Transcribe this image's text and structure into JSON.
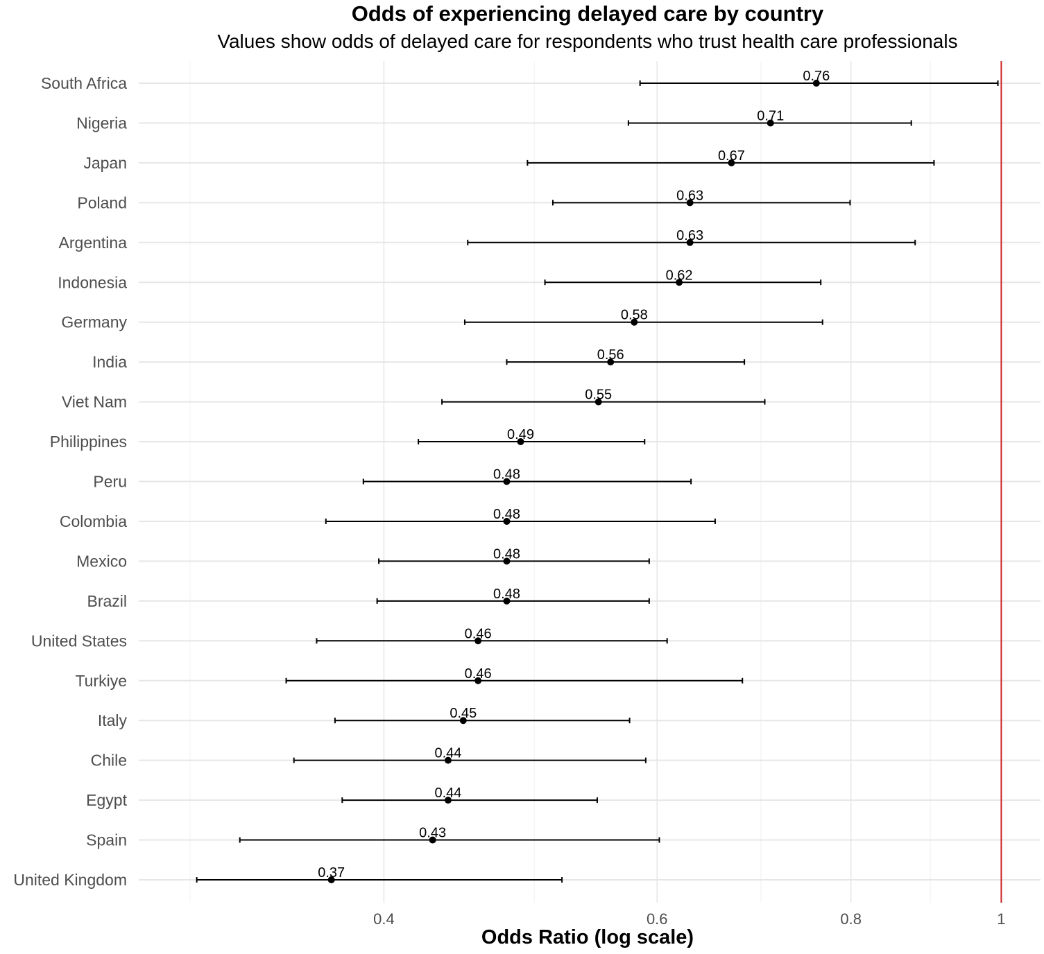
{
  "chart_data": {
    "type": "forest",
    "title": "Odds of experiencing delayed care by country",
    "subtitle": "Values show odds of delayed care for respondents who trust health care professionals",
    "xlabel": "Odds Ratio (log scale)",
    "x_scale": "log",
    "xlim": [
      0.278,
      1.06
    ],
    "x_ticks": [
      {
        "value": 0.4,
        "label": "0.4"
      },
      {
        "value": 0.6,
        "label": "0.6"
      },
      {
        "value": 0.8,
        "label": "0.8"
      },
      {
        "value": 1.0,
        "label": "1"
      }
    ],
    "x_minor_gridlines": [
      0.3,
      0.5,
      0.7,
      0.9
    ],
    "reference_line": {
      "value": 1.0,
      "color": "#cc2222"
    },
    "grid": true,
    "rows": [
      {
        "country": "South Africa",
        "or": 0.76,
        "label": "0.76",
        "lower": 0.585,
        "upper": 0.995
      },
      {
        "country": "Nigeria",
        "or": 0.71,
        "label": "0.71",
        "lower": 0.575,
        "upper": 0.875
      },
      {
        "country": "Japan",
        "or": 0.67,
        "label": "0.67",
        "lower": 0.495,
        "upper": 0.905
      },
      {
        "country": "Poland",
        "or": 0.63,
        "label": "0.63",
        "lower": 0.514,
        "upper": 0.799
      },
      {
        "country": "Argentina",
        "or": 0.63,
        "label": "0.63",
        "lower": 0.453,
        "upper": 0.88
      },
      {
        "country": "Indonesia",
        "or": 0.62,
        "label": "0.62",
        "lower": 0.508,
        "upper": 0.765
      },
      {
        "country": "Germany",
        "or": 0.58,
        "label": "0.58",
        "lower": 0.451,
        "upper": 0.767
      },
      {
        "country": "India",
        "or": 0.56,
        "label": "0.56",
        "lower": 0.48,
        "upper": 0.683
      },
      {
        "country": "Viet Nam",
        "or": 0.55,
        "label": "0.55",
        "lower": 0.436,
        "upper": 0.704
      },
      {
        "country": "Philippines",
        "or": 0.49,
        "label": "0.49",
        "lower": 0.421,
        "upper": 0.589
      },
      {
        "country": "Peru",
        "or": 0.48,
        "label": "0.48",
        "lower": 0.388,
        "upper": 0.631
      },
      {
        "country": "Colombia",
        "or": 0.48,
        "label": "0.48",
        "lower": 0.367,
        "upper": 0.654
      },
      {
        "country": "Mexico",
        "or": 0.48,
        "label": "0.48",
        "lower": 0.397,
        "upper": 0.593
      },
      {
        "country": "Brazil",
        "or": 0.48,
        "label": "0.48",
        "lower": 0.396,
        "upper": 0.593
      },
      {
        "country": "United States",
        "or": 0.46,
        "label": "0.46",
        "lower": 0.362,
        "upper": 0.609
      },
      {
        "country": "Turkiye",
        "or": 0.46,
        "label": "0.46",
        "lower": 0.346,
        "upper": 0.681
      },
      {
        "country": "Italy",
        "or": 0.45,
        "label": "0.45",
        "lower": 0.372,
        "upper": 0.576
      },
      {
        "country": "Chile",
        "or": 0.44,
        "label": "0.44",
        "lower": 0.35,
        "upper": 0.59
      },
      {
        "country": "Egypt",
        "or": 0.44,
        "label": "0.44",
        "lower": 0.376,
        "upper": 0.549
      },
      {
        "country": "Spain",
        "or": 0.43,
        "label": "0.43",
        "lower": 0.323,
        "upper": 0.602
      },
      {
        "country": "United Kingdom",
        "or": 0.37,
        "label": "0.37",
        "lower": 0.303,
        "upper": 0.521
      }
    ]
  }
}
